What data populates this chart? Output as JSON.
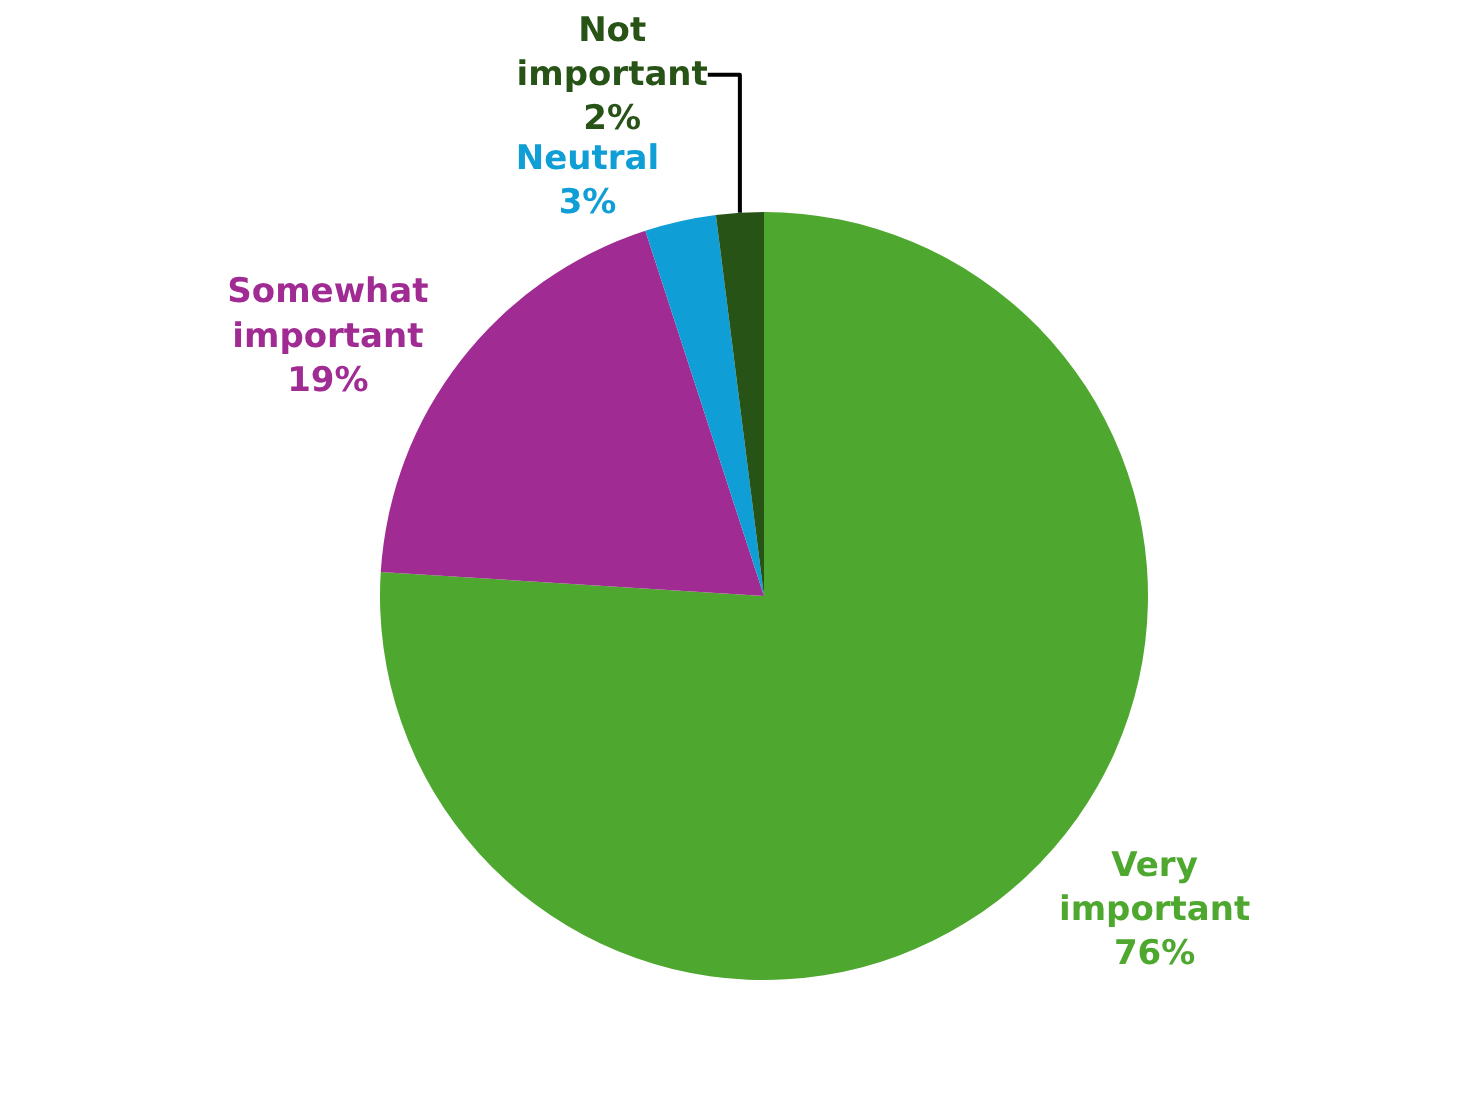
{
  "chart_data": {
    "type": "pie",
    "categories": [
      "Very important",
      "Somewhat important",
      "Neutral",
      "Not important"
    ],
    "values": [
      76,
      19,
      3,
      2
    ],
    "value_labels": [
      "76%",
      "19%",
      "3%",
      "2%"
    ],
    "colors": [
      "#4ea72e",
      "#a02b93",
      "#0f9ed5",
      "#275317"
    ],
    "legend": false
  }
}
